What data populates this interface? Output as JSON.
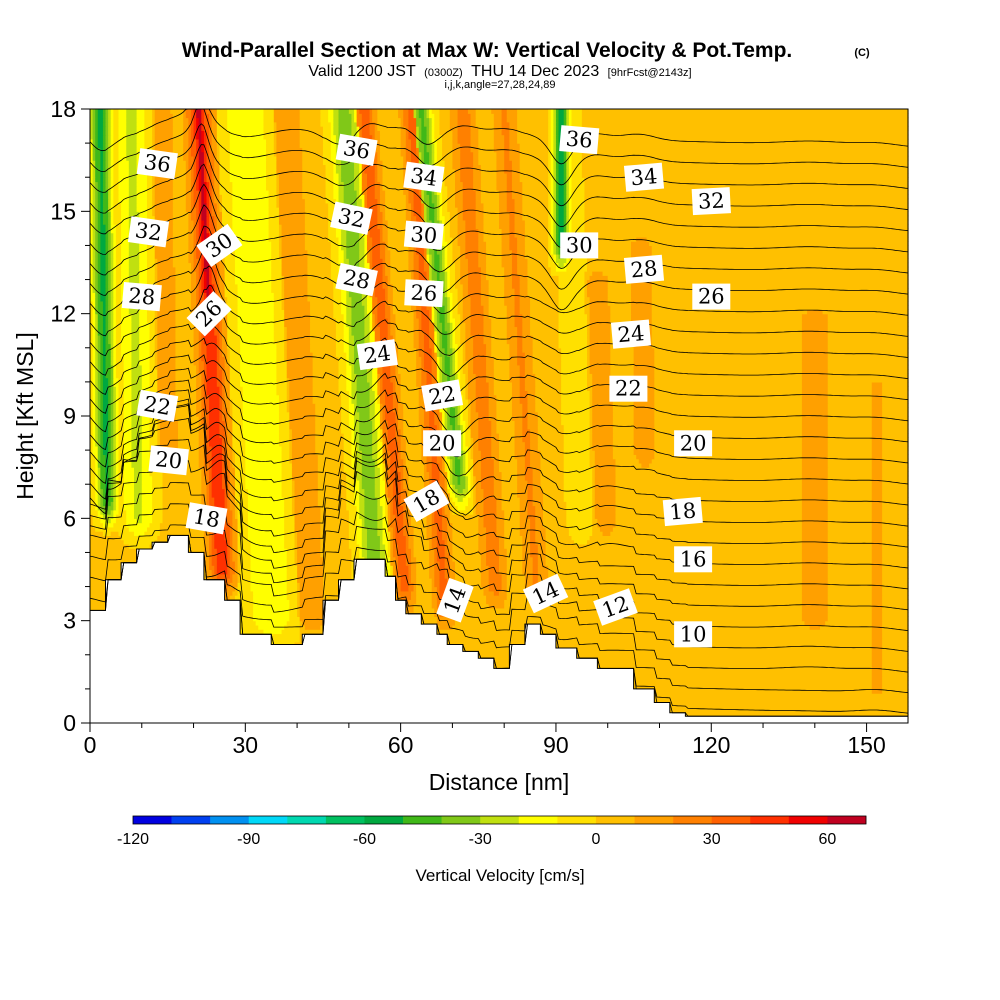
{
  "header": {
    "title": "Wind-Parallel Section at Max W: Vertical Velocity & Pot.Temp.",
    "copyright": "(C)",
    "valid_prefix": "Valid 1200 JST",
    "utc": "(0300Z)",
    "valid_date": "THU 14 Dec 2023",
    "forecast": "[9hrFcst@2143z]",
    "indices": "i,j,k,angle=27,28,24,89"
  },
  "chart_data": {
    "type": "heatmap",
    "title": "Wind-Parallel Section at Max W: Vertical Velocity & Pot.Temp.",
    "xlabel": "Distance [nm]",
    "ylabel": "Height [Kft MSL]",
    "xlim": [
      0,
      158
    ],
    "ylim": [
      0,
      18
    ],
    "xticks": [
      0,
      30,
      60,
      90,
      120,
      150
    ],
    "yticks": [
      0,
      3,
      6,
      9,
      12,
      15,
      18
    ],
    "colorbar": {
      "label": "Vertical Velocity [cm/s]",
      "ticks": [
        -120,
        -90,
        -60,
        -30,
        0,
        30,
        60
      ],
      "range": [
        -120,
        70
      ],
      "bin_width": 10,
      "colors": [
        "#0000e0",
        "#0040f0",
        "#0090f0",
        "#00d8f8",
        "#00d8b0",
        "#00c060",
        "#00a840",
        "#40b818",
        "#80c818",
        "#c0e010",
        "#ffff00",
        "#ffe000",
        "#ffc000",
        "#ffa000",
        "#ff8000",
        "#ff6000",
        "#ff3000",
        "#f00000",
        "#c00020",
        "#a00040",
        "#800060",
        "#600080"
      ]
    },
    "velocity_features": [
      {
        "x": 3,
        "width": 2.5,
        "bottom": 6.5,
        "top": 18,
        "value": -55,
        "tilt": -1
      },
      {
        "x": 9,
        "width": 4,
        "bottom": 6,
        "top": 18,
        "value": -25,
        "tilt": -1
      },
      {
        "x": 15,
        "width": 3,
        "bottom": 8,
        "top": 18,
        "value": 12,
        "tilt": -1
      },
      {
        "x": 24,
        "width": 3,
        "bottom": 4.5,
        "top": 18,
        "value": 45,
        "tilt": -3
      },
      {
        "x": 24,
        "width": 1.2,
        "bottom": 12,
        "top": 18,
        "value": 65,
        "tilt": -3
      },
      {
        "x": 33,
        "width": 6,
        "bottom": 3,
        "top": 18,
        "value": -22,
        "tilt": -3
      },
      {
        "x": 41,
        "width": 5,
        "bottom": 3,
        "top": 18,
        "value": 10,
        "tilt": -3
      },
      {
        "x": 53,
        "width": 3.5,
        "bottom": 4,
        "top": 18,
        "value": -40,
        "tilt": -4
      },
      {
        "x": 58,
        "width": 2.5,
        "bottom": 4,
        "top": 18,
        "value": 32,
        "tilt": -5
      },
      {
        "x": 66,
        "width": 2.5,
        "bottom": 3.5,
        "top": 18,
        "value": 30,
        "tilt": -4
      },
      {
        "x": 70,
        "width": 2.5,
        "bottom": 7,
        "top": 18,
        "value": -45,
        "tilt": -6
      },
      {
        "x": 76,
        "width": 3,
        "bottom": 4,
        "top": 18,
        "value": 22,
        "tilt": -4
      },
      {
        "x": 84,
        "width": 3,
        "bottom": 4,
        "top": 18,
        "value": 18,
        "tilt": -4
      },
      {
        "x": 91,
        "width": 2,
        "bottom": 14,
        "top": 18,
        "value": -55,
        "tilt": 0
      },
      {
        "x": 94,
        "width": 3,
        "bottom": 6,
        "top": 18,
        "value": -12,
        "tilt": -2
      },
      {
        "x": 99,
        "width": 3,
        "bottom": 6,
        "top": 13,
        "value": 14,
        "tilt": -2
      },
      {
        "x": 107,
        "width": 3,
        "bottom": 8,
        "top": 14,
        "value": 14,
        "tilt": -1
      },
      {
        "x": 140,
        "width": 6,
        "bottom": 3,
        "top": 12,
        "value": 9,
        "tilt": 0
      },
      {
        "x": 152,
        "width": 4,
        "bottom": 1,
        "top": 10,
        "value": 8,
        "tilt": 0
      }
    ],
    "background_velocity": 3,
    "terrain": {
      "x": [
        0,
        3,
        3,
        6,
        6,
        9,
        9,
        12,
        12,
        15,
        15,
        19,
        19,
        22,
        22,
        26,
        26,
        29,
        29,
        32,
        32,
        35,
        35,
        38,
        38,
        41,
        41,
        45,
        45,
        48,
        48,
        51,
        51,
        57,
        57,
        59,
        59,
        61,
        61,
        64,
        64,
        67,
        67,
        69,
        69,
        72,
        72,
        75,
        75,
        78,
        78,
        81,
        81,
        84,
        84,
        87,
        87,
        90,
        90,
        94,
        94,
        98,
        98,
        105,
        105,
        109,
        109,
        112,
        112,
        115,
        115,
        118,
        118,
        158
      ],
      "height": [
        3.3,
        3.3,
        4.2,
        4.2,
        4.7,
        4.7,
        5.1,
        5.1,
        5.3,
        5.3,
        5.5,
        5.5,
        5.0,
        5.0,
        4.2,
        4.2,
        3.6,
        3.6,
        2.6,
        2.6,
        2.6,
        2.6,
        2.3,
        2.3,
        2.3,
        2.3,
        2.6,
        2.6,
        3.6,
        3.6,
        4.2,
        4.2,
        4.8,
        4.8,
        4.3,
        4.3,
        3.6,
        3.6,
        3.2,
        3.2,
        2.9,
        2.9,
        2.6,
        2.6,
        2.3,
        2.3,
        2.1,
        2.1,
        1.9,
        1.9,
        1.6,
        1.6,
        2.3,
        2.3,
        2.9,
        2.9,
        2.6,
        2.6,
        2.2,
        2.2,
        1.9,
        1.9,
        1.6,
        1.6,
        1.0,
        1.0,
        0.6,
        0.6,
        0.3,
        0.3,
        0.2,
        0.2,
        0.2,
        0.2
      ]
    },
    "theta_contour_levels": [
      10,
      11,
      12,
      13,
      14,
      15,
      16,
      17,
      18,
      19,
      20,
      21,
      22,
      23,
      24,
      25,
      26,
      27,
      28,
      29,
      30,
      31,
      32,
      33,
      34,
      35,
      36,
      37,
      38
    ],
    "theta_labels": [
      {
        "text": "36",
        "x": 13,
        "y": 16.4,
        "angle": 8
      },
      {
        "text": "32",
        "x": 11.3,
        "y": 14.4,
        "angle": 8
      },
      {
        "text": "28",
        "x": 10,
        "y": 12.5,
        "angle": 5
      },
      {
        "text": "22",
        "x": 13,
        "y": 9.3,
        "angle": 10
      },
      {
        "text": "20",
        "x": 15.2,
        "y": 7.7,
        "angle": 6
      },
      {
        "text": "18",
        "x": 22.5,
        "y": 6.0,
        "angle": 10
      },
      {
        "text": "30",
        "x": 25,
        "y": 14.0,
        "angle": -35
      },
      {
        "text": "26",
        "x": 23,
        "y": 12.0,
        "angle": -45
      },
      {
        "text": "36",
        "x": 51.5,
        "y": 16.8,
        "angle": 10
      },
      {
        "text": "32",
        "x": 50.5,
        "y": 14.8,
        "angle": 12
      },
      {
        "text": "28",
        "x": 51.5,
        "y": 13.0,
        "angle": 12
      },
      {
        "text": "24",
        "x": 55.5,
        "y": 10.8,
        "angle": -8
      },
      {
        "text": "34",
        "x": 64.5,
        "y": 16.0,
        "angle": 8
      },
      {
        "text": "30",
        "x": 64.5,
        "y": 14.3,
        "angle": 5
      },
      {
        "text": "26",
        "x": 64.5,
        "y": 12.6,
        "angle": 3
      },
      {
        "text": "22",
        "x": 68,
        "y": 9.6,
        "angle": -10
      },
      {
        "text": "20",
        "x": 68,
        "y": 8.2,
        "angle": 0
      },
      {
        "text": "18",
        "x": 65,
        "y": 6.5,
        "angle": -30
      },
      {
        "text": "14",
        "x": 70.5,
        "y": 3.6,
        "angle": -70
      },
      {
        "text": "36",
        "x": 94.5,
        "y": 17.1,
        "angle": 5
      },
      {
        "text": "30",
        "x": 94.5,
        "y": 14.0,
        "angle": 0
      },
      {
        "text": "34",
        "x": 107,
        "y": 16.0,
        "angle": -5
      },
      {
        "text": "32",
        "x": 120,
        "y": 15.3,
        "angle": -3
      },
      {
        "text": "28",
        "x": 107,
        "y": 13.3,
        "angle": -5
      },
      {
        "text": "26",
        "x": 120,
        "y": 12.5,
        "angle": 0
      },
      {
        "text": "24",
        "x": 104.5,
        "y": 11.4,
        "angle": -5
      },
      {
        "text": "22",
        "x": 104,
        "y": 9.8,
        "angle": 0
      },
      {
        "text": "20",
        "x": 116.5,
        "y": 8.2,
        "angle": 0
      },
      {
        "text": "18",
        "x": 114.5,
        "y": 6.2,
        "angle": -5
      },
      {
        "text": "16",
        "x": 116.5,
        "y": 4.8,
        "angle": 0
      },
      {
        "text": "14",
        "x": 88,
        "y": 3.8,
        "angle": -25
      },
      {
        "text": "12",
        "x": 101.5,
        "y": 3.4,
        "angle": -20
      },
      {
        "text": "10",
        "x": 116.5,
        "y": 2.6,
        "angle": 0
      }
    ]
  }
}
